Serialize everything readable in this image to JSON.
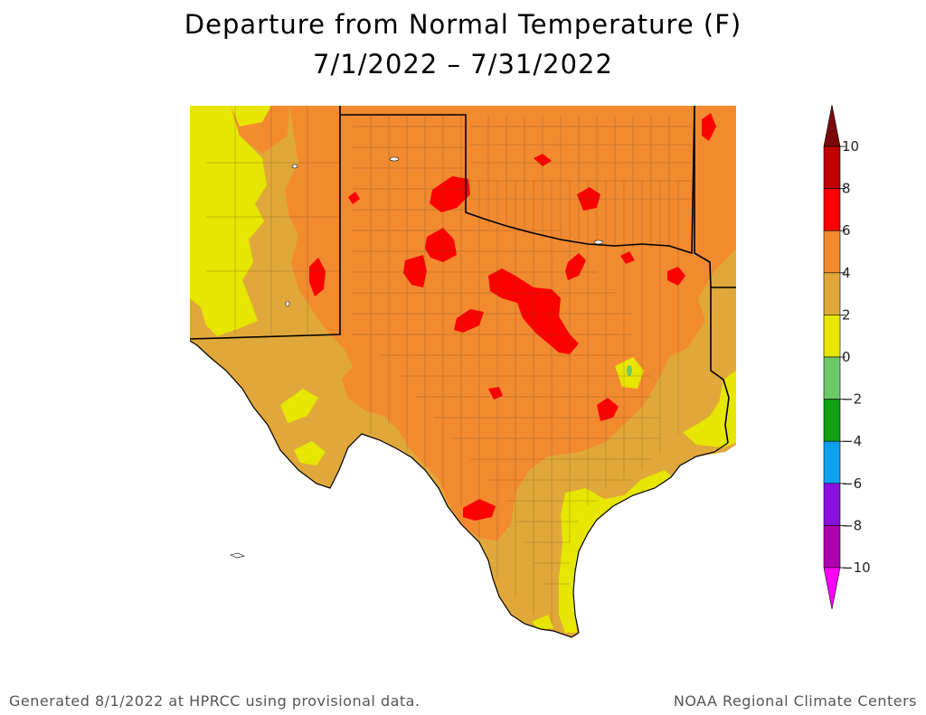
{
  "title": {
    "line1": "Departure from Normal Temperature (F)",
    "line2": "7/1/2022 – 7/31/2022"
  },
  "legend": {
    "units": "F",
    "bins": [
      {
        "from": 8,
        "to": 10,
        "color": "#c00000"
      },
      {
        "from": 6,
        "to": 8,
        "color": "#ff0000"
      },
      {
        "from": 4,
        "to": 6,
        "color": "#f28a30"
      },
      {
        "from": 2,
        "to": 4,
        "color": "#e0a83a"
      },
      {
        "from": 0,
        "to": 2,
        "color": "#e6e600"
      },
      {
        "from": -2,
        "to": 0,
        "color": "#6cc96a"
      },
      {
        "from": -4,
        "to": -2,
        "color": "#10a010"
      },
      {
        "from": -6,
        "to": -4,
        "color": "#10a0f0"
      },
      {
        "from": -8,
        "to": -6,
        "color": "#8a10e0"
      },
      {
        "from": -10,
        "to": -8,
        "color": "#b000b0"
      }
    ],
    "overflow_high_color": "#7a0a0a",
    "overflow_low_color": "#ff00ff",
    "labels": [
      "10",
      "8",
      "6",
      "4",
      "2",
      "0",
      "−2",
      "−4",
      "−6",
      "−8",
      "−10"
    ]
  },
  "map": {
    "region": "Texas and surrounding states",
    "fill_colors": {
      "plus_8_to_10": "#c00000",
      "plus_6_to_8": "#ff0000",
      "plus_4_to_6": "#f28a30",
      "plus_2_to_4": "#e0a83a",
      "zero_to_plus_2": "#e6e600",
      "minus_2_to_0": "#6cc96a",
      "boundary": "#000000"
    }
  },
  "footer": {
    "left": "Generated 8/1/2022 at HPRCC using provisional data.",
    "right": "NOAA Regional Climate Centers"
  }
}
